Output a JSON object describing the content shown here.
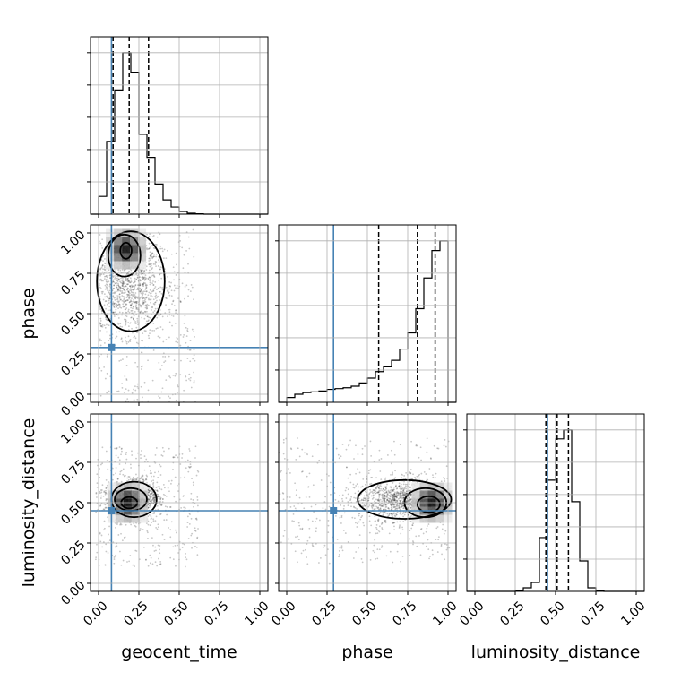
{
  "chart_data": {
    "type": "corner",
    "parameters": [
      "geocent_time",
      "phase",
      "luminosity_distance"
    ],
    "range": [
      -0.05,
      1.05
    ],
    "ticks": [
      0.0,
      0.25,
      0.5,
      0.75,
      1.0
    ],
    "tick_labels": [
      "0.00",
      "0.25",
      "0.50",
      "0.75",
      "1.00"
    ],
    "truths": {
      "geocent_time": 0.08,
      "phase": 0.29,
      "luminosity_distance": 0.45
    },
    "truth_color": "#4682b4",
    "grid": true,
    "axis_labels": {
      "x": [
        "geocent_time",
        "phase",
        "luminosity_distance"
      ],
      "y": [
        "phase",
        "luminosity_distance"
      ]
    },
    "marginals": [
      {
        "parameter": "geocent_time",
        "quantiles": [
          0.09,
          0.19,
          0.31
        ],
        "median_line": 0.19,
        "bins_start": -0.05,
        "bin_width": 0.05,
        "counts": [
          0.0,
          0.1,
          0.41,
          0.7,
          0.91,
          0.8,
          0.45,
          0.32,
          0.17,
          0.08,
          0.04,
          0.015,
          0.005,
          0.002,
          0.0,
          0.0,
          0.0,
          0.0,
          0.0,
          0.0,
          0.0,
          0.0
        ]
      },
      {
        "parameter": "phase",
        "quantiles": [
          0.57,
          0.81,
          0.92
        ],
        "median_line": 0.81,
        "bins_start": -0.05,
        "bin_width": 0.05,
        "counts": [
          0.0,
          0.03,
          0.05,
          0.06,
          0.065,
          0.07,
          0.08,
          0.085,
          0.09,
          0.1,
          0.12,
          0.15,
          0.19,
          0.22,
          0.26,
          0.33,
          0.43,
          0.58,
          0.77,
          0.94,
          1.0,
          0.0
        ]
      },
      {
        "parameter": "luminosity_distance",
        "quantiles": [
          0.44,
          0.51,
          0.58
        ],
        "median_line": 0.51,
        "bins_start": -0.05,
        "bin_width": 0.05,
        "counts": [
          0.0,
          0.0,
          0.0,
          0.0,
          0.0,
          0.0,
          0.002,
          0.02,
          0.05,
          0.3,
          0.62,
          0.85,
          0.9,
          0.5,
          0.17,
          0.02,
          0.005,
          0.0,
          0.0,
          0.0,
          0.0,
          0.0
        ]
      }
    ],
    "joint": [
      {
        "x": "geocent_time",
        "y": "phase",
        "peak": [
          0.17,
          0.9
        ],
        "sample_region": {
          "x": [
            0.0,
            0.6
          ],
          "y": [
            -0.05,
            1.02
          ]
        },
        "contours": [
          {
            "label": "inner",
            "center": [
              0.17,
              0.89
            ],
            "rx": 0.035,
            "ry": 0.05
          },
          {
            "label": "middle",
            "center": [
              0.16,
              0.86
            ],
            "rx": 0.1,
            "ry": 0.13
          },
          {
            "label": "outer",
            "center": [
              0.2,
              0.7
            ],
            "rx": 0.21,
            "ry": 0.31
          }
        ]
      },
      {
        "x": "geocent_time",
        "y": "luminosity_distance",
        "peak": [
          0.18,
          0.5
        ],
        "sample_region": {
          "x": [
            -0.02,
            0.62
          ],
          "y": [
            0.1,
            0.85
          ]
        },
        "contours": [
          {
            "label": "inner",
            "center": [
              0.19,
              0.5
            ],
            "rx": 0.05,
            "ry": 0.035
          },
          {
            "label": "middle",
            "center": [
              0.2,
              0.52
            ],
            "rx": 0.1,
            "ry": 0.07
          },
          {
            "label": "outer",
            "center": [
              0.22,
              0.52
            ],
            "rx": 0.14,
            "ry": 0.11
          }
        ]
      },
      {
        "x": "phase",
        "y": "luminosity_distance",
        "peak": [
          0.9,
          0.5
        ],
        "sample_region": {
          "x": [
            -0.05,
            1.02
          ],
          "y": [
            0.12,
            0.9
          ]
        },
        "contours": [
          {
            "label": "inner",
            "center": [
              0.88,
              0.49
            ],
            "rx": 0.07,
            "ry": 0.05
          },
          {
            "label": "middle",
            "center": [
              0.86,
              0.5
            ],
            "rx": 0.13,
            "ry": 0.09
          },
          {
            "label": "outer",
            "center": [
              0.73,
              0.52
            ],
            "rx": 0.29,
            "ry": 0.12
          }
        ]
      }
    ]
  }
}
